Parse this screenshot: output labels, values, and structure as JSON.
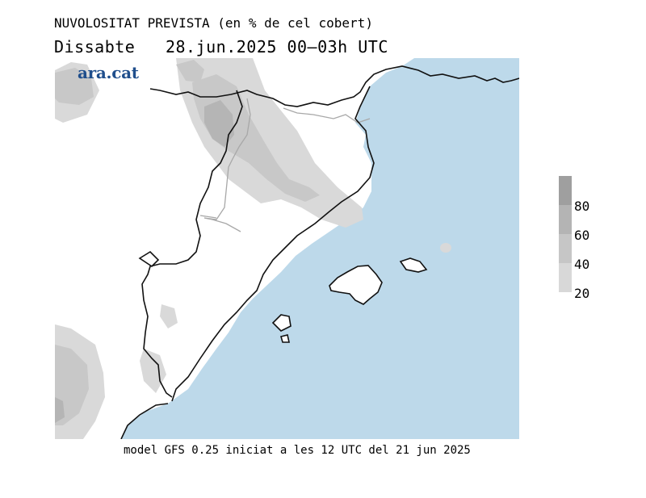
{
  "header": {
    "title": "NUVOLOSITAT PREVISTA (en % de cel cobert)",
    "day": "Dissabte",
    "date": "28.jun.2025",
    "time_range": "00–03h UTC"
  },
  "logo": {
    "text": "ara.cat"
  },
  "footer": {
    "text": "model GFS 0.25 iniciat a les 12 UTC del 21 jun 2025"
  },
  "legend": {
    "labels": [
      "80",
      "60",
      "40",
      "20"
    ],
    "colors": [
      "#9f9f9f",
      "#b4b4b4",
      "#c6c6c6",
      "#d8d8d8"
    ]
  },
  "map": {
    "sea_color": "#bdd9ea",
    "land_color": "#ffffff",
    "cloud_colors": {
      "light": "#d9d9d9",
      "medium": "#c8c8c8",
      "dark": "#b5b5b5"
    }
  }
}
